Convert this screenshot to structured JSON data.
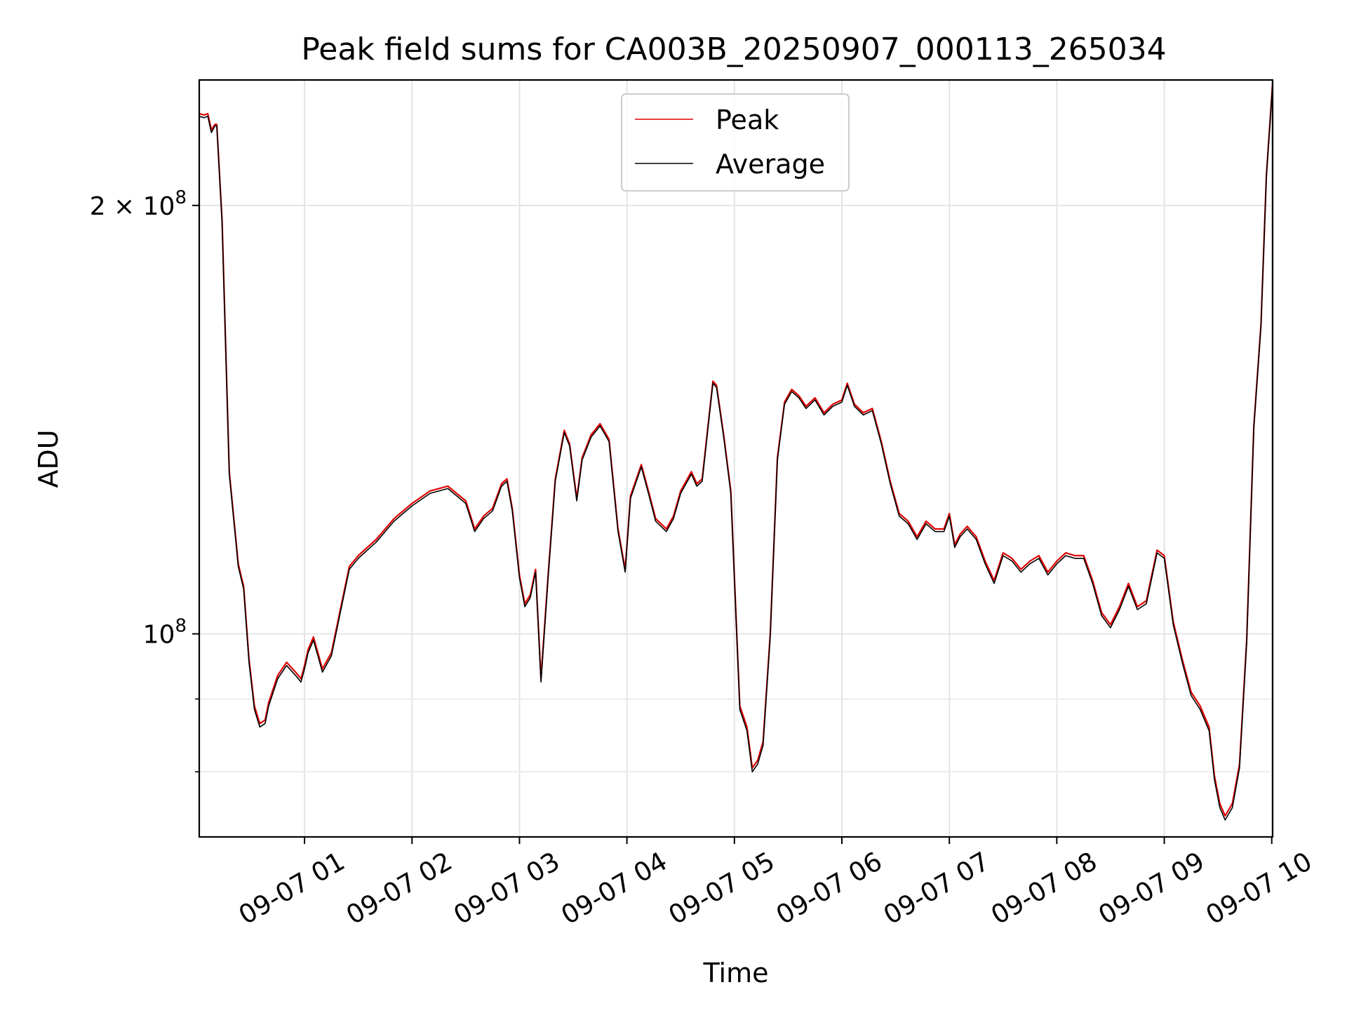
{
  "chart_data": {
    "type": "line",
    "title": "Peak field sums for CA003B_20250907_000113_265034",
    "xlabel": "Time",
    "ylabel": "ADU",
    "y_scale": "log",
    "ylim": [
      72000000,
      245000000
    ],
    "xlim": [
      "2025-09-07 00:01:13",
      "2025-09-07 10:00:30"
    ],
    "grid": true,
    "legend_position": "upper center",
    "x_ticks": [
      {
        "t": "2025-09-07 01:00",
        "label": "09-07 01"
      },
      {
        "t": "2025-09-07 02:00",
        "label": "09-07 02"
      },
      {
        "t": "2025-09-07 03:00",
        "label": "09-07 03"
      },
      {
        "t": "2025-09-07 04:00",
        "label": "09-07 04"
      },
      {
        "t": "2025-09-07 05:00",
        "label": "09-07 05"
      },
      {
        "t": "2025-09-07 06:00",
        "label": "09-07 06"
      },
      {
        "t": "2025-09-07 07:00",
        "label": "09-07 07"
      },
      {
        "t": "2025-09-07 08:00",
        "label": "09-07 08"
      },
      {
        "t": "2025-09-07 09:00",
        "label": "09-07 09"
      },
      {
        "t": "2025-09-07 10:00",
        "label": "09-07 10"
      }
    ],
    "y_major_ticks": [
      {
        "value": 200000000,
        "label_base": "2 × 10",
        "label_exp": "8"
      },
      {
        "value": 100000000,
        "label_base": "10",
        "label_exp": "8"
      }
    ],
    "y_minor_ticks": [
      80000000,
      90000000
    ],
    "series": [
      {
        "name": "Peak",
        "color": "#e00000",
        "x": [
          "2025-09-07 00:01:13",
          "2025-09-07 00:04",
          "2025-09-07 00:06",
          "2025-09-07 00:08",
          "2025-09-07 00:10",
          "2025-09-07 00:11",
          "2025-09-07 00:14",
          "2025-09-07 00:18",
          "2025-09-07 00:23",
          "2025-09-07 00:26",
          "2025-09-07 00:29",
          "2025-09-07 00:32",
          "2025-09-07 00:35",
          "2025-09-07 00:38",
          "2025-09-07 00:40",
          "2025-09-07 00:45",
          "2025-09-07 00:50",
          "2025-09-07 00:55",
          "2025-09-07 00:58",
          "2025-09-07 01:00",
          "2025-09-07 01:02",
          "2025-09-07 01:05",
          "2025-09-07 01:10",
          "2025-09-07 01:15",
          "2025-09-07 01:20",
          "2025-09-07 01:25",
          "2025-09-07 01:30",
          "2025-09-07 01:40",
          "2025-09-07 01:50",
          "2025-09-07 02:00",
          "2025-09-07 02:10",
          "2025-09-07 02:20",
          "2025-09-07 02:30",
          "2025-09-07 02:35",
          "2025-09-07 02:40",
          "2025-09-07 02:45",
          "2025-09-07 02:50",
          "2025-09-07 02:53",
          "2025-09-07 02:56",
          "2025-09-07 03:00",
          "2025-09-07 03:03",
          "2025-09-07 03:06",
          "2025-09-07 03:09",
          "2025-09-07 03:12",
          "2025-09-07 03:16",
          "2025-09-07 03:20",
          "2025-09-07 03:25",
          "2025-09-07 03:28",
          "2025-09-07 03:32",
          "2025-09-07 03:35",
          "2025-09-07 03:40",
          "2025-09-07 03:45",
          "2025-09-07 03:50",
          "2025-09-07 03:55",
          "2025-09-07 03:59",
          "2025-09-07 04:02",
          "2025-09-07 04:08",
          "2025-09-07 04:12",
          "2025-09-07 04:16",
          "2025-09-07 04:22",
          "2025-09-07 04:26",
          "2025-09-07 04:30",
          "2025-09-07 04:33",
          "2025-09-07 04:36",
          "2025-09-07 04:39",
          "2025-09-07 04:42",
          "2025-09-07 04:45",
          "2025-09-07 04:48",
          "2025-09-07 04:50",
          "2025-09-07 04:54",
          "2025-09-07 04:58",
          "2025-09-07 05:03",
          "2025-09-07 05:07",
          "2025-09-07 05:10",
          "2025-09-07 05:13",
          "2025-09-07 05:16",
          "2025-09-07 05:20",
          "2025-09-07 05:24",
          "2025-09-07 05:28",
          "2025-09-07 05:32",
          "2025-09-07 05:36",
          "2025-09-07 05:40",
          "2025-09-07 05:45",
          "2025-09-07 05:50",
          "2025-09-07 05:55",
          "2025-09-07 06:00",
          "2025-09-07 06:03",
          "2025-09-07 06:07",
          "2025-09-07 06:12",
          "2025-09-07 06:17",
          "2025-09-07 06:22",
          "2025-09-07 06:27",
          "2025-09-07 06:32",
          "2025-09-07 06:37",
          "2025-09-07 06:42",
          "2025-09-07 06:47",
          "2025-09-07 06:52",
          "2025-09-07 06:57",
          "2025-09-07 07:00",
          "2025-09-07 07:03",
          "2025-09-07 07:06",
          "2025-09-07 07:10",
          "2025-09-07 07:15",
          "2025-09-07 07:20",
          "2025-09-07 07:25",
          "2025-09-07 07:30",
          "2025-09-07 07:35",
          "2025-09-07 07:40",
          "2025-09-07 07:45",
          "2025-09-07 07:50",
          "2025-09-07 07:55",
          "2025-09-07 08:00",
          "2025-09-07 08:05",
          "2025-09-07 08:10",
          "2025-09-07 08:15",
          "2025-09-07 08:20",
          "2025-09-07 08:25",
          "2025-09-07 08:30",
          "2025-09-07 08:35",
          "2025-09-07 08:40",
          "2025-09-07 08:45",
          "2025-09-07 08:50",
          "2025-09-07 08:56",
          "2025-09-07 09:00",
          "2025-09-07 09:05",
          "2025-09-07 09:10",
          "2025-09-07 09:15",
          "2025-09-07 09:20",
          "2025-09-07 09:25",
          "2025-09-07 09:28",
          "2025-09-07 09:31",
          "2025-09-07 09:34",
          "2025-09-07 09:38",
          "2025-09-07 09:42",
          "2025-09-07 09:46",
          "2025-09-07 09:50",
          "2025-09-07 09:54",
          "2025-09-07 09:57",
          "2025-09-07 10:00:30"
        ],
        "values": [
          232000000,
          231500000,
          232000000,
          226000000,
          228000000,
          228000000,
          195000000,
          130000000,
          112000000,
          108000000,
          96000000,
          89000000,
          86500000,
          87000000,
          89500000,
          93500000,
          95500000,
          94000000,
          93000000,
          95000000,
          97500000,
          99500000,
          94500000,
          97000000,
          104000000,
          111500000,
          113500000,
          116500000,
          120500000,
          123500000,
          126000000,
          127000000,
          124000000,
          118500000,
          121000000,
          122500000,
          127500000,
          128500000,
          122500000,
          110000000,
          105000000,
          106500000,
          111000000,
          93000000,
          110000000,
          128500000,
          139000000,
          136000000,
          124500000,
          133000000,
          138000000,
          140500000,
          137000000,
          118500000,
          111000000,
          125000000,
          131500000,
          126000000,
          120500000,
          118500000,
          121000000,
          126000000,
          128000000,
          130000000,
          127500000,
          128500000,
          139000000,
          150500000,
          149500000,
          138000000,
          126000000,
          89000000,
          86000000,
          80500000,
          81500000,
          84000000,
          100000000,
          133000000,
          145500000,
          148500000,
          147000000,
          144500000,
          146500000,
          143000000,
          145000000,
          146000000,
          150000000,
          145000000,
          143000000,
          144000000,
          136500000,
          128000000,
          121500000,
          120000000,
          117000000,
          120000000,
          118500000,
          118500000,
          121500000,
          115500000,
          117500000,
          119000000,
          117000000,
          112500000,
          109000000,
          114000000,
          113000000,
          111000000,
          112500000,
          113500000,
          110500000,
          112500000,
          114000000,
          113500000,
          113500000,
          109000000,
          103500000,
          101500000,
          104500000,
          108500000,
          104500000,
          105500000,
          114500000,
          113500000,
          102000000,
          96000000,
          91000000,
          89000000,
          86000000,
          79500000,
          76000000,
          74500000,
          76000000,
          81000000,
          99000000,
          140000000,
          165000000,
          210000000,
          244000000
        ]
      },
      {
        "name": "Average",
        "color": "#000000",
        "x": [
          "2025-09-07 00:01:13",
          "2025-09-07 00:04",
          "2025-09-07 00:06",
          "2025-09-07 00:08",
          "2025-09-07 00:10",
          "2025-09-07 00:11",
          "2025-09-07 00:14",
          "2025-09-07 00:18",
          "2025-09-07 00:23",
          "2025-09-07 00:26",
          "2025-09-07 00:29",
          "2025-09-07 00:32",
          "2025-09-07 00:35",
          "2025-09-07 00:38",
          "2025-09-07 00:40",
          "2025-09-07 00:45",
          "2025-09-07 00:50",
          "2025-09-07 00:55",
          "2025-09-07 00:58",
          "2025-09-07 01:00",
          "2025-09-07 01:02",
          "2025-09-07 01:05",
          "2025-09-07 01:10",
          "2025-09-07 01:15",
          "2025-09-07 01:20",
          "2025-09-07 01:25",
          "2025-09-07 01:30",
          "2025-09-07 01:40",
          "2025-09-07 01:50",
          "2025-09-07 02:00",
          "2025-09-07 02:10",
          "2025-09-07 02:20",
          "2025-09-07 02:30",
          "2025-09-07 02:35",
          "2025-09-07 02:40",
          "2025-09-07 02:45",
          "2025-09-07 02:50",
          "2025-09-07 02:53",
          "2025-09-07 02:56",
          "2025-09-07 03:00",
          "2025-09-07 03:03",
          "2025-09-07 03:06",
          "2025-09-07 03:09",
          "2025-09-07 03:12",
          "2025-09-07 03:16",
          "2025-09-07 03:20",
          "2025-09-07 03:25",
          "2025-09-07 03:28",
          "2025-09-07 03:32",
          "2025-09-07 03:35",
          "2025-09-07 03:40",
          "2025-09-07 03:45",
          "2025-09-07 03:50",
          "2025-09-07 03:55",
          "2025-09-07 03:59",
          "2025-09-07 04:02",
          "2025-09-07 04:08",
          "2025-09-07 04:12",
          "2025-09-07 04:16",
          "2025-09-07 04:22",
          "2025-09-07 04:26",
          "2025-09-07 04:30",
          "2025-09-07 04:33",
          "2025-09-07 04:36",
          "2025-09-07 04:39",
          "2025-09-07 04:42",
          "2025-09-07 04:45",
          "2025-09-07 04:48",
          "2025-09-07 04:50",
          "2025-09-07 04:54",
          "2025-09-07 04:58",
          "2025-09-07 05:03",
          "2025-09-07 05:07",
          "2025-09-07 05:10",
          "2025-09-07 05:13",
          "2025-09-07 05:16",
          "2025-09-07 05:20",
          "2025-09-07 05:24",
          "2025-09-07 05:28",
          "2025-09-07 05:32",
          "2025-09-07 05:36",
          "2025-09-07 05:40",
          "2025-09-07 05:45",
          "2025-09-07 05:50",
          "2025-09-07 05:55",
          "2025-09-07 06:00",
          "2025-09-07 06:03",
          "2025-09-07 06:07",
          "2025-09-07 06:12",
          "2025-09-07 06:17",
          "2025-09-07 06:22",
          "2025-09-07 06:27",
          "2025-09-07 06:32",
          "2025-09-07 06:37",
          "2025-09-07 06:42",
          "2025-09-07 06:47",
          "2025-09-07 06:52",
          "2025-09-07 06:57",
          "2025-09-07 07:00",
          "2025-09-07 07:03",
          "2025-09-07 07:06",
          "2025-09-07 07:10",
          "2025-09-07 07:15",
          "2025-09-07 07:20",
          "2025-09-07 07:25",
          "2025-09-07 07:30",
          "2025-09-07 07:35",
          "2025-09-07 07:40",
          "2025-09-07 07:45",
          "2025-09-07 07:50",
          "2025-09-07 07:55",
          "2025-09-07 08:00",
          "2025-09-07 08:05",
          "2025-09-07 08:10",
          "2025-09-07 08:15",
          "2025-09-07 08:20",
          "2025-09-07 08:25",
          "2025-09-07 08:30",
          "2025-09-07 08:35",
          "2025-09-07 08:40",
          "2025-09-07 08:45",
          "2025-09-07 08:50",
          "2025-09-07 08:56",
          "2025-09-07 09:00",
          "2025-09-07 09:05",
          "2025-09-07 09:10",
          "2025-09-07 09:15",
          "2025-09-07 09:20",
          "2025-09-07 09:25",
          "2025-09-07 09:28",
          "2025-09-07 09:31",
          "2025-09-07 09:34",
          "2025-09-07 09:38",
          "2025-09-07 09:42",
          "2025-09-07 09:46",
          "2025-09-07 09:50",
          "2025-09-07 09:54",
          "2025-09-07 09:57",
          "2025-09-07 10:00:30"
        ],
        "values": [
          231000000,
          230500000,
          231000000,
          225000000,
          227500000,
          227500000,
          194000000,
          129500000,
          111500000,
          107500000,
          95500000,
          88500000,
          86000000,
          86500000,
          89000000,
          93000000,
          95000000,
          93500000,
          92500000,
          94500000,
          97000000,
          99000000,
          94000000,
          96500000,
          103500000,
          111000000,
          113000000,
          116000000,
          120000000,
          123000000,
          125500000,
          126500000,
          123500000,
          118000000,
          120500000,
          122000000,
          127000000,
          128000000,
          122000000,
          109500000,
          104500000,
          106000000,
          110500000,
          92500000,
          109500000,
          128000000,
          138500000,
          135500000,
          124000000,
          132500000,
          137500000,
          140000000,
          136500000,
          118000000,
          110500000,
          124500000,
          131000000,
          125500000,
          120000000,
          118000000,
          120500000,
          125500000,
          127500000,
          129500000,
          127000000,
          128000000,
          138500000,
          150000000,
          149000000,
          137500000,
          125500000,
          88500000,
          85500000,
          80000000,
          81000000,
          83500000,
          99500000,
          132500000,
          145000000,
          148000000,
          146500000,
          144000000,
          146000000,
          142500000,
          144500000,
          145500000,
          149500000,
          144500000,
          142500000,
          143500000,
          136000000,
          127500000,
          121000000,
          119500000,
          116500000,
          119500000,
          118000000,
          118000000,
          121000000,
          115000000,
          117000000,
          118500000,
          116500000,
          112000000,
          108500000,
          113500000,
          112500000,
          110500000,
          112000000,
          113000000,
          110000000,
          112000000,
          113500000,
          113000000,
          113000000,
          108500000,
          103000000,
          101000000,
          104000000,
          108000000,
          104000000,
          105000000,
          114000000,
          113000000,
          101500000,
          95500000,
          90500000,
          88500000,
          85500000,
          79000000,
          75500000,
          74000000,
          75500000,
          80500000,
          98500000,
          139500000,
          164500000,
          209500000,
          243500000
        ]
      }
    ]
  }
}
